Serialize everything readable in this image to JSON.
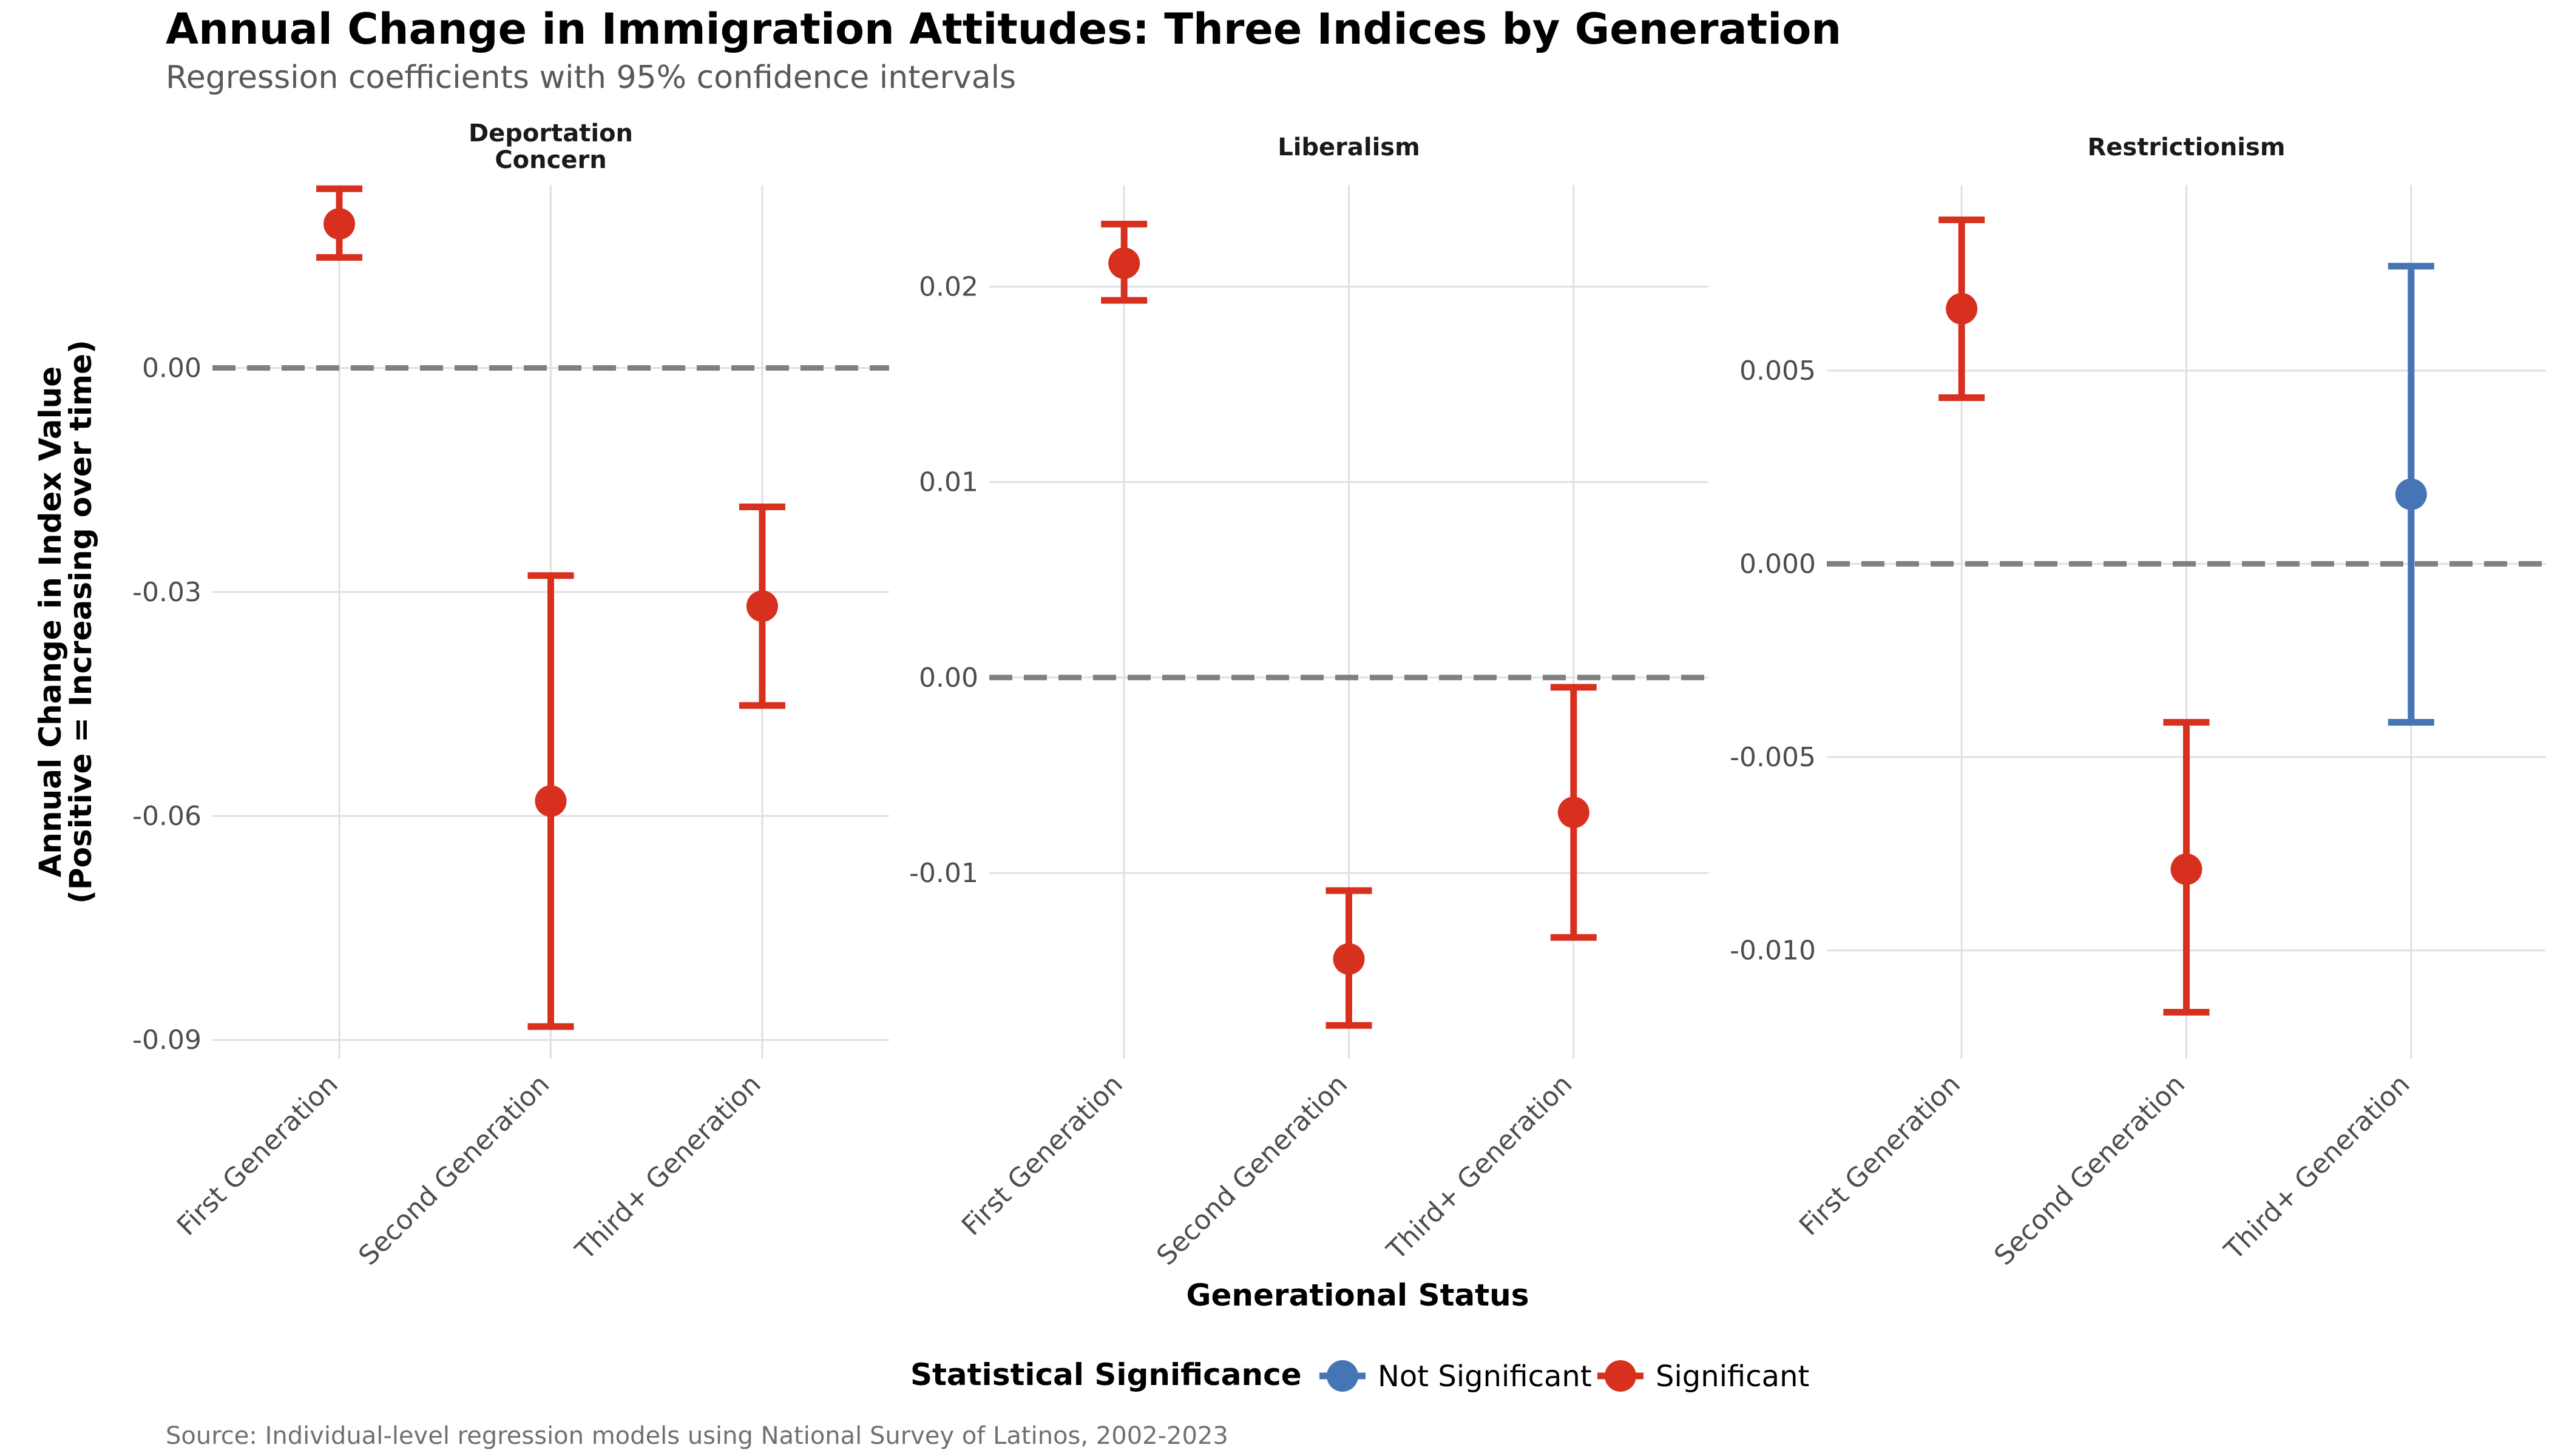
{
  "chart_data": {
    "type": "scatter",
    "title": "Annual Change in Immigration Attitudes: Three Indices by Generation",
    "subtitle": "Regression coefficients with 95% confidence intervals",
    "xlabel": "Generational Status",
    "ylabel_line1": "Annual Change in Index Value",
    "ylabel_line2": "(Positive = Increasing over time)",
    "caption": "Source: Individual-level regression models using National Survey of Latinos, 2002-2023",
    "categories": [
      "First Generation",
      "Second Generation",
      "Third+ Generation"
    ],
    "reference_line": 0,
    "legend": {
      "title": "Statistical Significance",
      "position": "bottom",
      "items": [
        {
          "label": "Not Significant",
          "color": "#4575b4"
        },
        {
          "label": "Significant",
          "color": "#d7301f"
        }
      ]
    },
    "colors": {
      "Significant": "#d7301f",
      "Not Significant": "#4575b4",
      "reference": "#808080",
      "grid": "#e0e0e0"
    },
    "panels": [
      {
        "title_lines": [
          "Deportation",
          "Concern"
        ],
        "ylim": [
          -0.0925,
          0.0245
        ],
        "yticks": [
          0.0,
          -0.03,
          -0.06,
          -0.09
        ],
        "ytick_labels": [
          "0.00",
          "-0.03",
          "-0.06",
          "-0.09"
        ],
        "points": [
          {
            "category": "First Generation",
            "estimate": 0.0193,
            "ci_low": 0.0148,
            "ci_high": 0.024,
            "significance": "Significant"
          },
          {
            "category": "Second Generation",
            "estimate": -0.058,
            "ci_low": -0.0882,
            "ci_high": -0.0278,
            "significance": "Significant"
          },
          {
            "category": "Third+ Generation",
            "estimate": -0.0319,
            "ci_low": -0.0452,
            "ci_high": -0.0186,
            "significance": "Significant"
          }
        ]
      },
      {
        "title_lines": [
          "Liberalism"
        ],
        "ylim": [
          -0.0195,
          0.0252
        ],
        "yticks": [
          0.02,
          0.01,
          0.0,
          -0.01
        ],
        "ytick_labels": [
          "0.02",
          "0.01",
          "0.00",
          "-0.01"
        ],
        "points": [
          {
            "category": "First Generation",
            "estimate": 0.0212,
            "ci_low": 0.0193,
            "ci_high": 0.0232,
            "significance": "Significant"
          },
          {
            "category": "Second Generation",
            "estimate": -0.0144,
            "ci_low": -0.0178,
            "ci_high": -0.0109,
            "significance": "Significant"
          },
          {
            "category": "Third+ Generation",
            "estimate": -0.0069,
            "ci_low": -0.0133,
            "ci_high": -0.0005,
            "significance": "Significant"
          }
        ]
      },
      {
        "title_lines": [
          "Restrictionism"
        ],
        "ylim": [
          -0.0128,
          0.0098
        ],
        "yticks": [
          0.005,
          0.0,
          -0.005,
          -0.01
        ],
        "ytick_labels": [
          "0.005",
          "0.000",
          "-0.005",
          "-0.010"
        ],
        "points": [
          {
            "category": "First Generation",
            "estimate": 0.0066,
            "ci_low": 0.0043,
            "ci_high": 0.0089,
            "significance": "Significant"
          },
          {
            "category": "Second Generation",
            "estimate": -0.0079,
            "ci_low": -0.0116,
            "ci_high": -0.0041,
            "significance": "Significant"
          },
          {
            "category": "Third+ Generation",
            "estimate": 0.0018,
            "ci_low": -0.0041,
            "ci_high": 0.0077,
            "significance": "Not Significant"
          }
        ]
      }
    ]
  }
}
